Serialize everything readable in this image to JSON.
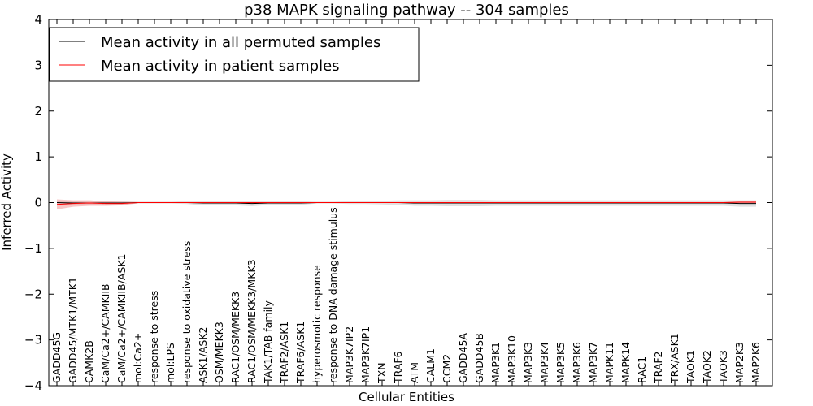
{
  "chart_data": {
    "type": "line",
    "title": "p38 MAPK signaling pathway -- 304 samples",
    "xlabel": "Cellular Entities",
    "ylabel": "Inferred Activity",
    "ylim": [
      -4,
      4
    ],
    "yticks": [
      -4,
      -3,
      -2,
      -1,
      0,
      1,
      2,
      3,
      4
    ],
    "ytick_labels": [
      "−4",
      "−3",
      "−2",
      "−1",
      "0",
      "1",
      "2",
      "3",
      "4"
    ],
    "legend_position": "top-left",
    "categories": [
      "GADD45G",
      "GADD45/MTK1/MTK1",
      "CAMK2B",
      "CaM/Ca2+/CAMKIIB",
      "CaM/Ca2+/CAMKIIB/ASK1",
      "mol:Ca2+",
      "response to stress",
      "mol:LPS",
      "response to oxidative stress",
      "ASK1/ASK2",
      "OSM/MEKK3",
      "RAC1/OSM/MEKK3",
      "RAC1/OSM/MEKK3/MKK3",
      "TAK1/TAB family",
      "TRAF2/ASK1",
      "TRAF6/ASK1",
      "hyperosmotic response",
      "response to DNA damage stimulus",
      "MAP3K7IP2",
      "MAP3K7IP1",
      "TXN",
      "TRAF6",
      "ATM",
      "CALM1",
      "CCM2",
      "GADD45A",
      "GADD45B",
      "MAP3K1",
      "MAP3K10",
      "MAP3K3",
      "MAP3K4",
      "MAP3K5",
      "MAP3K6",
      "MAP3K7",
      "MAPK11",
      "MAPK14",
      "RAC1",
      "TRAF2",
      "TRX/ASK1",
      "TAOK1",
      "TAOK2",
      "TAOK3",
      "MAP2K3",
      "MAP2K6"
    ],
    "series": [
      {
        "name": "Mean activity in all permuted samples",
        "color": "#000000",
        "band_color": "#c8c8c8",
        "values": [
          0.0,
          -0.01,
          -0.01,
          -0.01,
          -0.01,
          0.0,
          0.0,
          0.0,
          0.0,
          -0.01,
          -0.01,
          -0.01,
          -0.02,
          -0.01,
          -0.01,
          -0.01,
          0.0,
          0.0,
          0.0,
          0.0,
          0.0,
          0.0,
          -0.01,
          -0.01,
          -0.01,
          -0.01,
          -0.01,
          -0.01,
          -0.01,
          -0.01,
          -0.01,
          -0.01,
          -0.01,
          -0.01,
          -0.01,
          -0.01,
          -0.01,
          -0.01,
          -0.01,
          -0.01,
          -0.01,
          -0.01,
          -0.02,
          -0.02
        ],
        "band": [
          0.04,
          0.04,
          0.05,
          0.05,
          0.04,
          0.02,
          0.02,
          0.02,
          0.03,
          0.05,
          0.05,
          0.05,
          0.06,
          0.04,
          0.05,
          0.04,
          0.02,
          0.02,
          0.03,
          0.03,
          0.04,
          0.05,
          0.06,
          0.06,
          0.07,
          0.07,
          0.07,
          0.06,
          0.06,
          0.06,
          0.06,
          0.06,
          0.06,
          0.06,
          0.06,
          0.06,
          0.06,
          0.06,
          0.06,
          0.06,
          0.06,
          0.06,
          0.07,
          0.07
        ]
      },
      {
        "name": "Mean activity in patient samples",
        "color": "#ff0000",
        "band_color": "#f4a0a0",
        "values": [
          -0.04,
          -0.02,
          -0.01,
          -0.02,
          -0.02,
          0.0,
          0.0,
          0.0,
          0.0,
          0.0,
          0.0,
          0.0,
          0.0,
          0.0,
          0.0,
          0.0,
          0.0,
          0.0,
          0.0,
          0.0,
          0.0,
          0.0,
          0.0,
          0.0,
          0.0,
          0.0,
          0.0,
          0.0,
          0.0,
          0.0,
          0.0,
          0.0,
          0.0,
          0.0,
          0.0,
          0.0,
          0.0,
          0.0,
          0.0,
          0.0,
          0.0,
          0.0,
          0.01,
          0.01
        ],
        "band": [
          0.11,
          0.07,
          0.06,
          0.05,
          0.04,
          0.01,
          0.01,
          0.01,
          0.01,
          0.01,
          0.01,
          0.01,
          0.01,
          0.01,
          0.01,
          0.01,
          0.01,
          0.01,
          0.01,
          0.01,
          0.01,
          0.01,
          0.01,
          0.01,
          0.01,
          0.01,
          0.01,
          0.01,
          0.01,
          0.01,
          0.01,
          0.01,
          0.01,
          0.01,
          0.01,
          0.01,
          0.01,
          0.01,
          0.01,
          0.01,
          0.01,
          0.01,
          0.02,
          0.02
        ]
      }
    ]
  }
}
